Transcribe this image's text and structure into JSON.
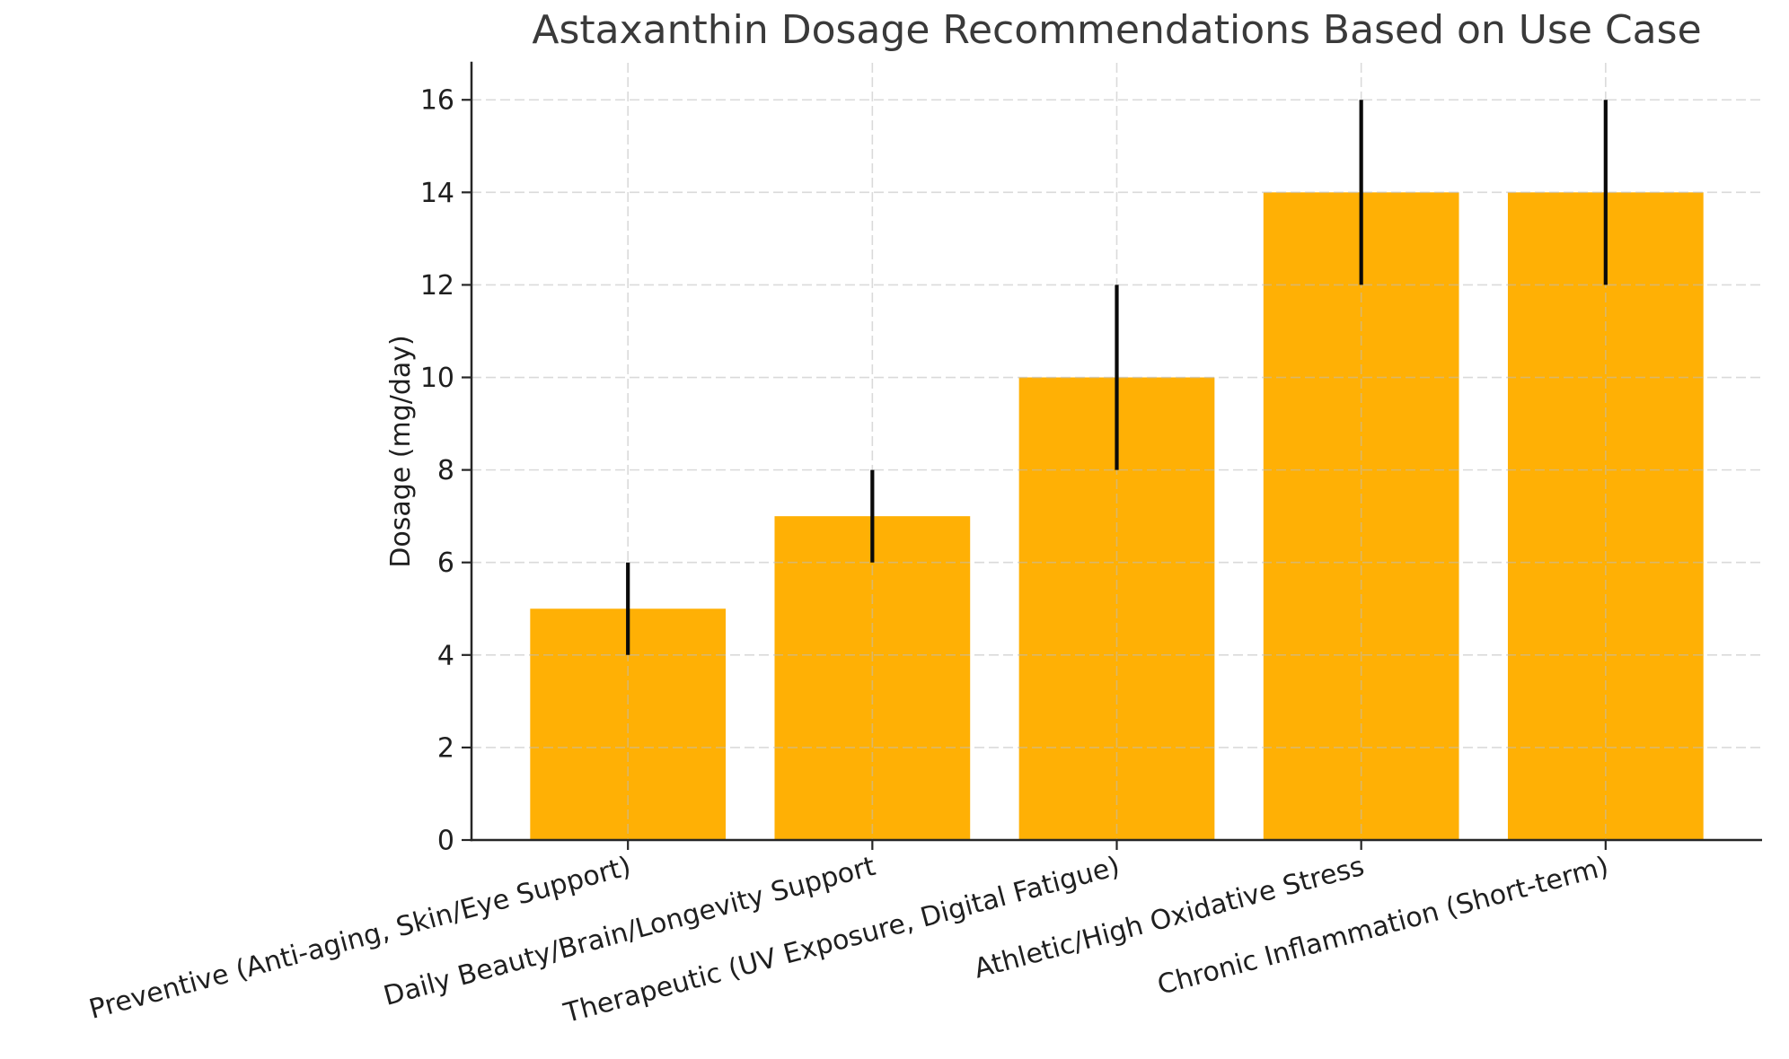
{
  "chart_data": {
    "type": "bar",
    "title": "Astaxanthin Dosage Recommendations Based on Use Case",
    "xlabel": "",
    "ylabel": "Dosage (mg/day)",
    "categories": [
      "Preventive (Anti-aging, Skin/Eye Support)",
      "Daily Beauty/Brain/Longevity Support",
      "Therapeutic (UV Exposure, Digital Fatigue)",
      "Athletic/High Oxidative Stress",
      "Chronic Inflammation (Short-term)"
    ],
    "values": [
      5,
      7,
      10,
      14,
      14
    ],
    "error_low": [
      4,
      6,
      8,
      12,
      12
    ],
    "error_high": [
      6,
      8,
      12,
      16,
      16
    ],
    "yticks": [
      0,
      2,
      4,
      6,
      8,
      10,
      12,
      14,
      16
    ],
    "ylim": [
      0,
      16.8
    ],
    "grid": true,
    "legend_position": "none",
    "xtick_rotation_degrees": 15,
    "colors": {
      "background": "#ffffff",
      "bar": "#ffb005",
      "error_bar": "#0a0a0a",
      "grid": "#bdbdbd",
      "spine": "#262626",
      "title_text": "#3a3a3a",
      "tick_text": "#1f1f1f"
    }
  }
}
